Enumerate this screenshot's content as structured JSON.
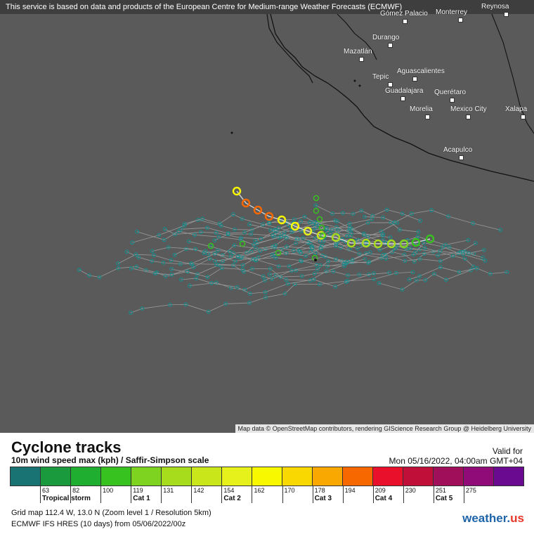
{
  "map": {
    "banner": "This service is based on data and products of the European Centre for Medium-range Weather Forecasts (ECMWF)",
    "attribution": "Map data © OpenStreetMap contributors, rendering GIScience Research Group @ Heidelberg University",
    "cities": [
      {
        "name": "Gómez Palacio"
      },
      {
        "name": "Monterrey"
      },
      {
        "name": "Reynosa"
      },
      {
        "name": "Durango"
      },
      {
        "name": "Mazatlán"
      },
      {
        "name": "Tepic"
      },
      {
        "name": "Aguascalientes"
      },
      {
        "name": "Guadalajara"
      },
      {
        "name": "Querétaro"
      },
      {
        "name": "Morelia"
      },
      {
        "name": "Mexico City"
      },
      {
        "name": "Xalapa"
      },
      {
        "name": "Acapulco"
      }
    ],
    "colors": {
      "ocean": "#5a5a5a",
      "land": "#5a5a5a",
      "coast": "#111111"
    }
  },
  "legend": {
    "title": "Cyclone tracks",
    "subtitle": "10m wind speed max (kph) / Saffir-Simpson scale",
    "valid_label": "Valid for",
    "valid_date": "Mon 05/16/2022, 04:00am GMT+04",
    "scale_colors": [
      "#1a7373",
      "#1a9a3c",
      "#1fae2f",
      "#38c21f",
      "#7ed321",
      "#a6dc1c",
      "#c8e61a",
      "#e6f01a",
      "#f8f800",
      "#f8d800",
      "#f8a800",
      "#f86800",
      "#e8102a",
      "#c0103a",
      "#a0105a",
      "#900a78",
      "#6a0a90"
    ],
    "ticks": [
      "63",
      "82",
      "100",
      "119",
      "131",
      "142",
      "154",
      "162",
      "170",
      "178",
      "194",
      "209",
      "230",
      "251",
      "275"
    ],
    "categories": [
      "Tropical storm",
      "Cat 1",
      "Cat 2",
      "Cat 3",
      "Cat 4",
      "Cat 5"
    ],
    "grid_info": "Grid map 112.4 W, 13.0 N (Zoom level 1 / Resolution 5km)",
    "model_info": "ECMWF IFS HRES (10 days) from  05/06/2022/00z",
    "brand_main": "weather.",
    "brand_us": "us"
  }
}
